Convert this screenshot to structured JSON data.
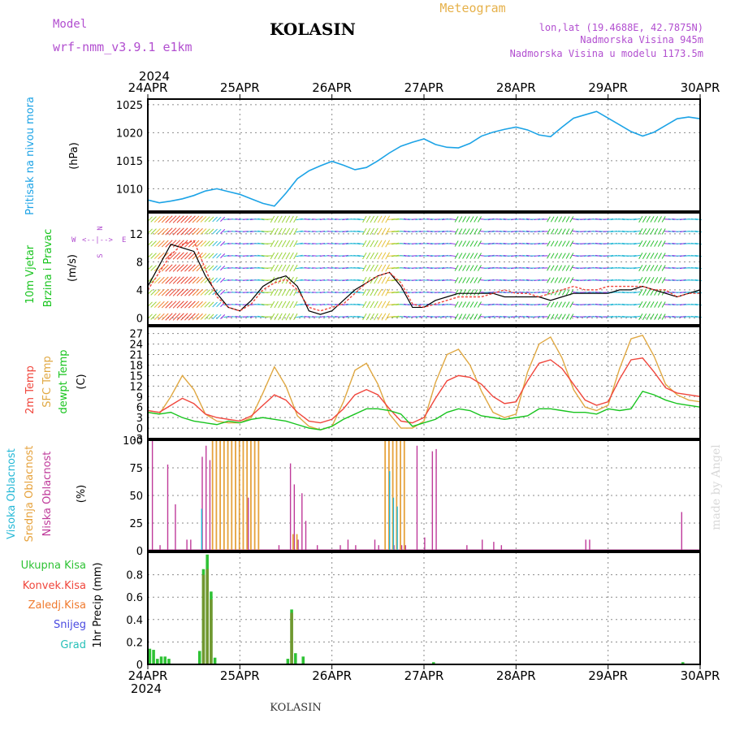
{
  "header": {
    "model_label": "Model",
    "model_name": "wrf-nmm_v3.9.1 e1km",
    "station_title": "KOLASIN",
    "meteogram_label": "Meteogram",
    "coords": "lon,lat (19.4688E, 42.7875N)",
    "altitude": "Nadmorska Visina 945m",
    "model_altitude": "Nadmorska Visina u modelu 1173.5m"
  },
  "footer": {
    "station_name": "KOLASIN",
    "credit": "made by Angel"
  },
  "time_axis": {
    "year": "2024",
    "days": [
      "24APR",
      "25APR",
      "26APR",
      "27APR",
      "28APR",
      "29APR",
      "30APR"
    ]
  },
  "colors": {
    "pressure": "#1ca3e6",
    "temp2m": "#f0463c",
    "sfc_temp": "#e0a842",
    "dewpt": "#18c41e",
    "high_cloud": "#26b8d6",
    "mid_cloud": "#e6a23c",
    "low_cloud": "#bf3a9a",
    "total_precip": "#2ec234",
    "conv_precip": "#f0463c",
    "frz_precip": "#f07a2e",
    "snow": "#4a4ae0",
    "graupel": "#26c0b8",
    "wind_speed": "#000000",
    "wind_gust": "#f0463c"
  },
  "chart_data": [
    {
      "type": "line",
      "panel": "pressure",
      "ylabel_left": "Pritisak na nivou mora",
      "unit": "(hPa)",
      "ylim": [
        1006,
        1026
      ],
      "yticks": [
        1010,
        1015,
        1020,
        1025
      ],
      "x_hours": [
        0,
        3,
        6,
        9,
        12,
        15,
        18,
        21,
        24,
        27,
        30,
        33,
        36,
        39,
        42,
        45,
        48,
        51,
        54,
        57,
        60,
        63,
        66,
        69,
        72,
        75,
        78,
        81,
        84,
        87,
        90,
        93,
        96,
        99,
        102,
        105,
        108,
        111,
        114,
        117,
        120,
        123,
        126,
        129,
        132,
        135,
        138,
        141,
        144
      ],
      "series": [
        {
          "values": [
            1008.0,
            1007.5,
            1007.8,
            1008.2,
            1008.8,
            1009.6,
            1010.0,
            1009.5,
            1009.0,
            1008.2,
            1007.4,
            1006.9,
            1009.2,
            1011.8,
            1013.2,
            1014.1,
            1014.9,
            1014.2,
            1013.4,
            1013.8,
            1015.0,
            1016.4,
            1017.6,
            1018.3,
            1018.9,
            1017.9,
            1017.4,
            1017.3,
            1018.1,
            1019.4,
            1020.1,
            1020.6,
            1021.0,
            1020.5,
            1019.6,
            1019.3,
            1021.0,
            1022.6,
            1023.2,
            1023.8,
            1022.6,
            1021.4,
            1020.2,
            1019.4,
            1020.1,
            1021.3,
            1022.5,
            1022.8,
            1022.5
          ]
        }
      ]
    },
    {
      "type": "line",
      "panel": "wind",
      "ylabel_left1": "10m Vjetar",
      "ylabel_left2": "Brzina i Pravac",
      "unit": "(m/s)",
      "compass": {
        "n": "N",
        "w": "W",
        "e": "E",
        "s": "S",
        "arrows": "<--|-->"
      },
      "ylim": [
        -1,
        15
      ],
      "yticks": [
        0,
        4,
        8,
        12
      ],
      "x_hours": [
        0,
        3,
        6,
        9,
        12,
        15,
        18,
        21,
        24,
        27,
        30,
        33,
        36,
        39,
        42,
        45,
        48,
        51,
        54,
        57,
        60,
        63,
        66,
        69,
        72,
        75,
        78,
        81,
        84,
        87,
        90,
        93,
        96,
        99,
        102,
        105,
        108,
        111,
        114,
        117,
        120,
        123,
        126,
        129,
        132,
        135,
        138,
        141,
        144
      ],
      "series": [
        {
          "name": "speed",
          "values": [
            4.5,
            7.5,
            10.5,
            10.0,
            9.5,
            6.0,
            3.5,
            1.5,
            1.0,
            2.5,
            4.5,
            5.5,
            6.0,
            4.5,
            1.0,
            0.5,
            1.0,
            2.5,
            4.0,
            5.0,
            6.0,
            6.5,
            4.5,
            1.5,
            1.5,
            2.5,
            3.0,
            3.5,
            3.5,
            3.5,
            3.5,
            3.0,
            3.0,
            3.0,
            3.0,
            2.5,
            3.0,
            3.5,
            3.5,
            3.5,
            3.5,
            4.0,
            4.0,
            4.5,
            4.0,
            3.5,
            3.0,
            3.5,
            4.0
          ]
        },
        {
          "name": "gust",
          "values": [
            4.0,
            6.5,
            9.0,
            10.5,
            11.0,
            7.0,
            3.0,
            1.5,
            1.0,
            2.0,
            4.0,
            5.0,
            5.5,
            4.0,
            1.5,
            1.0,
            1.5,
            2.0,
            3.5,
            5.0,
            6.0,
            6.5,
            5.0,
            2.0,
            1.5,
            2.0,
            2.5,
            3.0,
            3.0,
            3.0,
            3.5,
            4.0,
            3.5,
            3.5,
            3.0,
            3.5,
            4.0,
            4.5,
            4.0,
            4.0,
            4.5,
            4.5,
            4.5,
            4.5,
            4.0,
            4.0,
            3.0,
            3.5,
            3.5
          ]
        }
      ]
    },
    {
      "type": "line",
      "panel": "temperature",
      "ylabel_left1": "2m Temp",
      "ylabel_left2": "SFC Temp",
      "ylabel_left3": "dewpt Temp",
      "unit": "(C)",
      "ylim": [
        -3,
        29
      ],
      "yticks": [
        -3,
        0,
        3,
        6,
        9,
        12,
        15,
        18,
        21,
        24,
        27
      ],
      "x_hours": [
        0,
        3,
        6,
        9,
        12,
        15,
        18,
        21,
        24,
        27,
        30,
        33,
        36,
        39,
        42,
        45,
        48,
        51,
        54,
        57,
        60,
        63,
        66,
        69,
        72,
        75,
        78,
        81,
        84,
        87,
        90,
        93,
        96,
        99,
        102,
        105,
        108,
        111,
        114,
        117,
        120,
        123,
        126,
        129,
        132,
        135,
        138,
        141,
        144
      ],
      "series": [
        {
          "name": "2m Temp",
          "values": [
            5.0,
            4.5,
            6.5,
            8.5,
            7.0,
            4.0,
            3.0,
            2.5,
            2.0,
            3.5,
            6.5,
            9.5,
            8.0,
            4.5,
            2.0,
            1.5,
            2.5,
            5.5,
            9.5,
            11.0,
            9.5,
            5.5,
            2.0,
            1.5,
            3.0,
            8.5,
            13.5,
            15.0,
            14.5,
            12.5,
            9.0,
            7.0,
            7.5,
            13.5,
            18.5,
            19.5,
            17.0,
            12.5,
            8.0,
            6.5,
            7.5,
            14.0,
            19.5,
            20.0,
            16.0,
            11.5,
            10.0,
            9.5,
            9.0
          ]
        },
        {
          "name": "SFC Temp",
          "values": [
            4.5,
            4.0,
            9.0,
            15.0,
            11.0,
            4.0,
            2.0,
            1.5,
            1.5,
            3.0,
            10.0,
            17.5,
            12.0,
            3.5,
            0.5,
            -0.5,
            0.5,
            7.5,
            16.5,
            18.5,
            12.5,
            4.0,
            0.0,
            0.0,
            2.0,
            13.0,
            21.0,
            22.5,
            18.0,
            10.5,
            4.5,
            3.0,
            4.0,
            16.0,
            24.0,
            26.0,
            20.0,
            11.0,
            6.0,
            5.0,
            6.5,
            17.0,
            25.5,
            26.5,
            20.5,
            12.5,
            9.5,
            8.0,
            7.5
          ]
        },
        {
          "name": "dewpt Temp",
          "values": [
            4.5,
            4.0,
            4.5,
            3.0,
            2.0,
            1.5,
            1.0,
            2.0,
            1.5,
            2.5,
            3.0,
            2.5,
            2.0,
            1.0,
            0.0,
            -0.5,
            0.5,
            2.5,
            4.0,
            5.5,
            5.5,
            5.0,
            4.0,
            0.5,
            1.5,
            2.5,
            4.5,
            5.5,
            5.0,
            3.5,
            3.0,
            2.5,
            3.0,
            3.5,
            5.5,
            5.5,
            5.0,
            4.5,
            4.5,
            4.0,
            5.5,
            5.0,
            5.5,
            10.5,
            9.5,
            8.0,
            7.0,
            6.5,
            6.0
          ]
        }
      ]
    },
    {
      "type": "bar",
      "panel": "clouds",
      "ylabel_left1": "Visoka Oblacnost",
      "ylabel_left2": "Srednja Oblacnost",
      "ylabel_left3": "Niska Oblacnost",
      "unit": "(%)",
      "ylim": [
        0,
        100
      ],
      "yticks": [
        0,
        25,
        50,
        75,
        100
      ],
      "series": [
        {
          "name": "Niska Oblacnost",
          "points": [
            [
              1,
              100
            ],
            [
              3,
              5
            ],
            [
              5,
              78
            ],
            [
              7,
              42
            ],
            [
              10,
              10
            ],
            [
              11,
              10
            ],
            [
              14,
              85
            ],
            [
              15,
              95
            ],
            [
              16,
              82
            ],
            [
              26,
              48
            ],
            [
              34,
              5
            ],
            [
              37,
              79
            ],
            [
              38,
              60
            ],
            [
              39,
              10
            ],
            [
              40,
              52
            ],
            [
              41,
              27
            ],
            [
              44,
              5
            ],
            [
              50,
              5
            ],
            [
              52,
              10
            ],
            [
              54,
              5
            ],
            [
              59,
              10
            ],
            [
              60,
              5
            ],
            [
              64,
              5
            ],
            [
              66,
              5
            ],
            [
              67,
              5
            ],
            [
              70,
              95
            ],
            [
              72,
              12
            ],
            [
              74,
              90
            ],
            [
              75,
              92
            ],
            [
              83,
              5
            ],
            [
              87,
              10
            ],
            [
              90,
              8
            ],
            [
              92,
              5
            ],
            [
              114,
              10
            ],
            [
              115,
              10
            ],
            [
              139,
              35
            ]
          ]
        },
        {
          "name": "Srednja Oblacnost",
          "points": [
            [
              17,
              100
            ],
            [
              18,
              100
            ],
            [
              19,
              100
            ],
            [
              20,
              100
            ],
            [
              21,
              100
            ],
            [
              22,
              100
            ],
            [
              23,
              100
            ],
            [
              24,
              100
            ],
            [
              25,
              100
            ],
            [
              26,
              100
            ],
            [
              27,
              100
            ],
            [
              28,
              100
            ],
            [
              29,
              100
            ],
            [
              38,
              15
            ],
            [
              39,
              15
            ],
            [
              62,
              100
            ],
            [
              63,
              100
            ],
            [
              64,
              100
            ],
            [
              65,
              100
            ],
            [
              66,
              100
            ],
            [
              67,
              100
            ]
          ]
        },
        {
          "name": "Visoka Oblacnost",
          "points": [
            [
              14,
              38
            ],
            [
              63,
              72
            ],
            [
              64,
              48
            ],
            [
              65,
              40
            ]
          ]
        }
      ]
    },
    {
      "type": "bar",
      "panel": "precip",
      "ylabel_left": "1hr Precip (mm)",
      "legend_labels": [
        "Ukupna Kisa",
        "Konvek.Kisa",
        "Zaledj.Kisa",
        "Snijeg",
        "Grad"
      ],
      "ylim": [
        0,
        1.0
      ],
      "yticks": [
        0,
        0.2,
        0.4,
        0.6,
        0.8
      ],
      "series": [
        {
          "name": "Ukupna Kisa",
          "points": [
            [
              0,
              0.14
            ],
            [
              1,
              0.13
            ],
            [
              2,
              0.05
            ],
            [
              3,
              0.07
            ],
            [
              4,
              0.07
            ],
            [
              5,
              0.05
            ],
            [
              13,
              0.12
            ],
            [
              14,
              0.85
            ],
            [
              15,
              0.98
            ],
            [
              16,
              0.65
            ],
            [
              17,
              0.06
            ],
            [
              36,
              0.05
            ],
            [
              37,
              0.49
            ],
            [
              38,
              0.1
            ],
            [
              40,
              0.07
            ],
            [
              74,
              0.02
            ],
            [
              139,
              0.02
            ]
          ]
        },
        {
          "name": "Konvek.Kisa",
          "points": [
            [
              14,
              0.8
            ],
            [
              15,
              0.85
            ],
            [
              16,
              0.58
            ],
            [
              37,
              0.46
            ]
          ]
        }
      ]
    }
  ]
}
